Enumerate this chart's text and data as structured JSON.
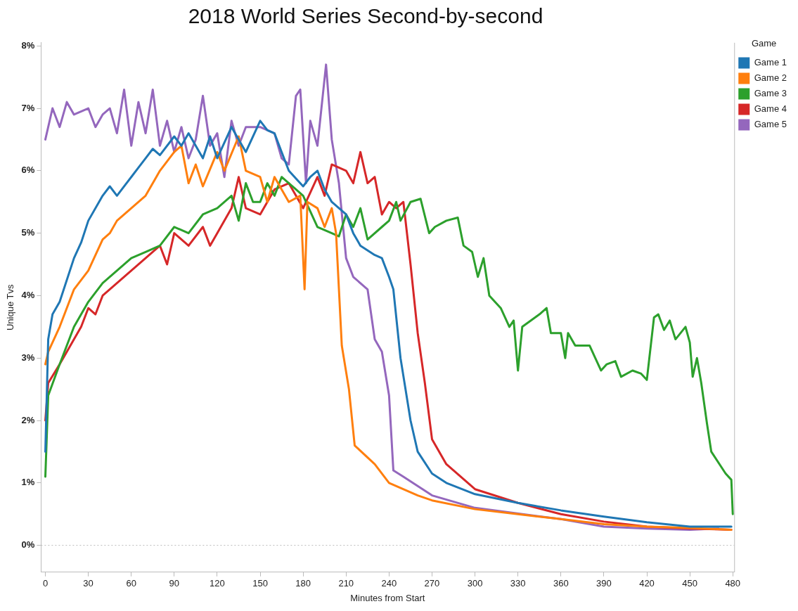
{
  "chart_data": {
    "type": "line",
    "title": "2018 World Series Second-by-second",
    "xlabel": "Minutes from Start",
    "ylabel": "Unique Tvs",
    "legend_title": "Game",
    "legend": "top right",
    "grid": false,
    "marker": "none",
    "line_style": "solid",
    "xlim": [
      -3,
      481
    ],
    "xticks": [
      0,
      30,
      60,
      90,
      120,
      150,
      180,
      210,
      240,
      270,
      300,
      330,
      360,
      390,
      420,
      450,
      480
    ],
    "ylim": [
      -0.43,
      8.05
    ],
    "yticks": [
      {
        "value": 0,
        "label": "0%"
      },
      {
        "value": 1,
        "label": "1%"
      },
      {
        "value": 2,
        "label": "2%"
      },
      {
        "value": 3,
        "label": "3%"
      },
      {
        "value": 4,
        "label": "4%"
      },
      {
        "value": 5,
        "label": "5%"
      },
      {
        "value": 6,
        "label": "6%"
      },
      {
        "value": 7,
        "label": "7%"
      },
      {
        "value": 8,
        "label": "8%"
      }
    ],
    "ref_lines": [
      {
        "axis": "y",
        "value": 0,
        "color": "#bbbbbb",
        "line_style": "dotted"
      }
    ],
    "series": [
      {
        "name": "Game 1",
        "color": "#1f77b4",
        "x": [
          0,
          2,
          5,
          10,
          20,
          25,
          30,
          40,
          45,
          50,
          60,
          65,
          70,
          75,
          80,
          90,
          95,
          100,
          110,
          115,
          120,
          130,
          140,
          150,
          155,
          160,
          165,
          170,
          180,
          185,
          190,
          195,
          200,
          210,
          215,
          220,
          230,
          235,
          240,
          243,
          248,
          255,
          260,
          270,
          280,
          300,
          330,
          360,
          390,
          420,
          450,
          479
        ],
        "values": [
          1.5,
          3.3,
          3.7,
          3.9,
          4.6,
          4.85,
          5.2,
          5.6,
          5.75,
          5.6,
          5.9,
          6.05,
          6.2,
          6.35,
          6.25,
          6.55,
          6.4,
          6.6,
          6.2,
          6.55,
          6.2,
          6.7,
          6.3,
          6.8,
          6.65,
          6.6,
          6.3,
          6.0,
          5.75,
          5.9,
          6.0,
          5.7,
          5.5,
          5.3,
          5.0,
          4.8,
          4.65,
          4.6,
          4.3,
          4.1,
          3.0,
          2.0,
          1.5,
          1.15,
          1.0,
          0.82,
          0.68,
          0.56,
          0.46,
          0.37,
          0.3,
          0.3
        ]
      },
      {
        "name": "Game 2",
        "color": "#ff7f0e",
        "x": [
          0,
          2,
          10,
          20,
          30,
          40,
          45,
          50,
          60,
          70,
          80,
          90,
          95,
          100,
          105,
          110,
          120,
          125,
          135,
          140,
          150,
          155,
          160,
          170,
          178,
          181,
          183,
          190,
          195,
          200,
          203,
          207,
          212,
          216,
          230,
          240,
          260,
          270,
          300,
          330,
          360,
          390,
          420,
          450,
          479
        ],
        "values": [
          2.9,
          3.1,
          3.5,
          4.1,
          4.4,
          4.9,
          5.0,
          5.2,
          5.4,
          5.6,
          6.0,
          6.3,
          6.4,
          5.8,
          6.1,
          5.75,
          6.3,
          6.0,
          6.55,
          6.0,
          5.9,
          5.5,
          5.9,
          5.5,
          5.6,
          4.1,
          5.5,
          5.4,
          5.1,
          5.4,
          5.0,
          3.2,
          2.5,
          1.6,
          1.3,
          1.0,
          0.8,
          0.72,
          0.58,
          0.5,
          0.42,
          0.34,
          0.3,
          0.28,
          0.25
        ]
      },
      {
        "name": "Game 3",
        "color": "#2ca02c",
        "x": [
          0,
          2,
          10,
          20,
          30,
          40,
          50,
          60,
          70,
          80,
          90,
          100,
          110,
          120,
          130,
          135,
          140,
          145,
          150,
          155,
          160,
          165,
          175,
          180,
          190,
          200,
          205,
          210,
          215,
          220,
          225,
          235,
          240,
          245,
          248,
          255,
          262,
          268,
          272,
          280,
          288,
          292,
          298,
          302,
          306,
          310,
          318,
          324,
          327,
          330,
          333,
          345,
          350,
          353,
          360,
          363,
          365,
          370,
          380,
          388,
          392,
          398,
          402,
          410,
          416,
          420,
          425,
          428,
          432,
          436,
          440,
          447,
          450,
          452,
          455,
          458,
          462,
          465,
          475,
          479,
          480
        ],
        "values": [
          1.1,
          2.4,
          2.9,
          3.5,
          3.9,
          4.2,
          4.4,
          4.6,
          4.7,
          4.8,
          5.1,
          5.0,
          5.3,
          5.4,
          5.6,
          5.2,
          5.8,
          5.5,
          5.5,
          5.8,
          5.6,
          5.9,
          5.7,
          5.6,
          5.1,
          5.0,
          4.95,
          5.3,
          5.1,
          5.4,
          4.9,
          5.1,
          5.2,
          5.5,
          5.2,
          5.5,
          5.55,
          5.0,
          5.1,
          5.2,
          5.25,
          4.8,
          4.7,
          4.3,
          4.6,
          4.0,
          3.8,
          3.5,
          3.6,
          2.8,
          3.5,
          3.7,
          3.8,
          3.4,
          3.4,
          3.0,
          3.4,
          3.2,
          3.2,
          2.8,
          2.9,
          2.95,
          2.7,
          2.8,
          2.75,
          2.65,
          3.65,
          3.7,
          3.45,
          3.6,
          3.3,
          3.5,
          3.25,
          2.7,
          3.0,
          2.6,
          1.95,
          1.5,
          1.15,
          1.05,
          0.5
        ]
      },
      {
        "name": "Game 4",
        "color": "#d62728",
        "x": [
          0,
          2,
          10,
          20,
          25,
          30,
          35,
          40,
          50,
          60,
          70,
          80,
          85,
          90,
          100,
          110,
          115,
          120,
          130,
          135,
          140,
          150,
          160,
          170,
          180,
          190,
          195,
          200,
          210,
          215,
          220,
          225,
          230,
          235,
          240,
          245,
          250,
          255,
          260,
          265,
          270,
          280,
          300,
          330,
          360,
          390,
          420,
          450,
          479
        ],
        "values": [
          2.0,
          2.6,
          2.9,
          3.3,
          3.5,
          3.8,
          3.7,
          4.0,
          4.2,
          4.4,
          4.6,
          4.8,
          4.5,
          5.0,
          4.8,
          5.1,
          4.8,
          5.0,
          5.4,
          5.9,
          5.4,
          5.3,
          5.7,
          5.8,
          5.4,
          5.9,
          5.6,
          6.1,
          6.0,
          5.8,
          6.3,
          5.8,
          5.9,
          5.3,
          5.5,
          5.4,
          5.5,
          4.5,
          3.4,
          2.6,
          1.7,
          1.3,
          0.9,
          0.68,
          0.5,
          0.38,
          0.3,
          0.27,
          0.25
        ]
      },
      {
        "name": "Game 5",
        "color": "#9467bd",
        "x": [
          0,
          5,
          10,
          15,
          20,
          30,
          35,
          40,
          45,
          50,
          55,
          60,
          65,
          70,
          75,
          80,
          85,
          90,
          95,
          100,
          105,
          110,
          115,
          120,
          125,
          130,
          135,
          140,
          150,
          160,
          165,
          170,
          175,
          178,
          182,
          185,
          190,
          196,
          200,
          205,
          210,
          215,
          225,
          230,
          235,
          240,
          243,
          250,
          270,
          300,
          360,
          390,
          420,
          450,
          470
        ],
        "values": [
          6.5,
          7.0,
          6.7,
          7.1,
          6.9,
          7.0,
          6.7,
          6.9,
          7.0,
          6.6,
          7.3,
          6.4,
          7.1,
          6.6,
          7.3,
          6.4,
          6.8,
          6.3,
          6.7,
          6.2,
          6.5,
          7.2,
          6.4,
          6.6,
          5.9,
          6.8,
          6.4,
          6.7,
          6.7,
          6.6,
          6.2,
          6.1,
          7.2,
          7.3,
          5.8,
          6.8,
          6.4,
          7.7,
          6.5,
          5.8,
          4.6,
          4.3,
          4.1,
          3.3,
          3.1,
          2.4,
          1.2,
          1.1,
          0.8,
          0.6,
          0.42,
          0.3,
          0.27,
          0.25,
          0.27
        ]
      }
    ]
  }
}
